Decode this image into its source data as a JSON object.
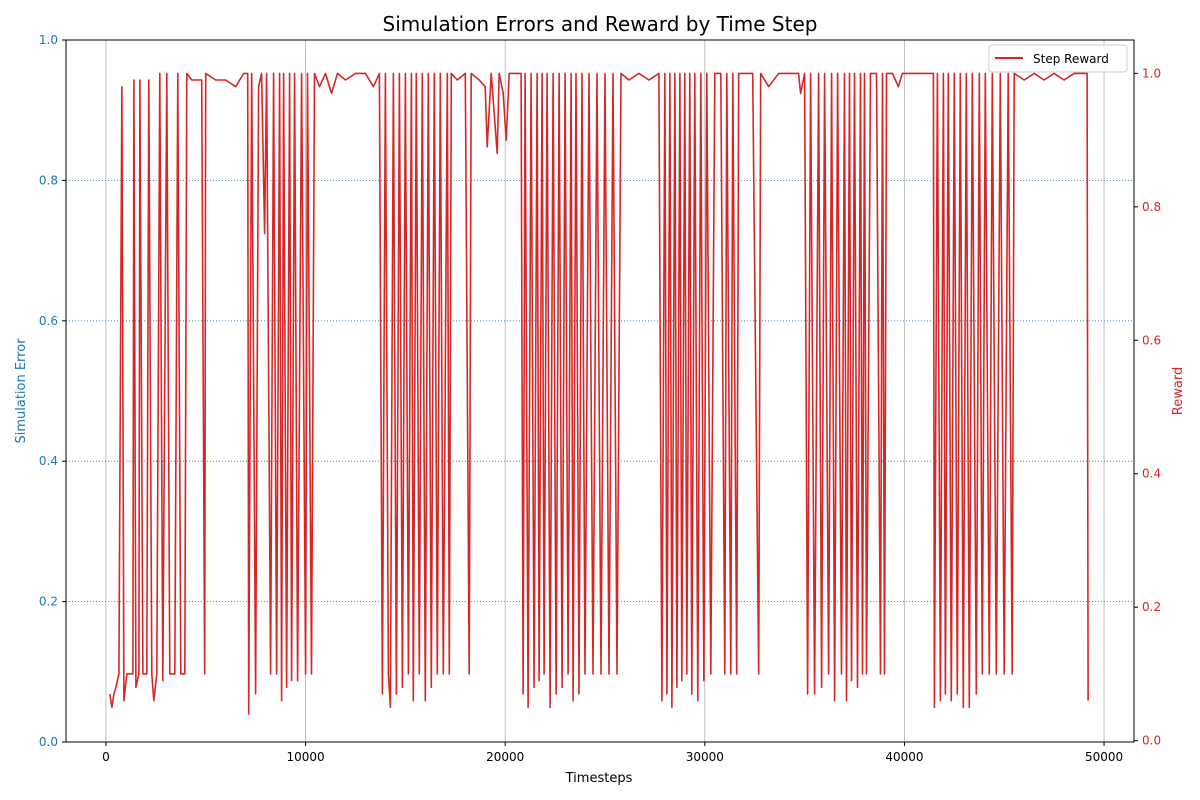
{
  "chart_data": {
    "type": "line",
    "title": "Simulation Errors and Reward by Time Step",
    "xlabel": "Timesteps",
    "ylabel_left": "Simulation Error",
    "ylabel_right": "Reward",
    "xlim": [
      -2000,
      51500
    ],
    "ylim_left": [
      0,
      1.0
    ],
    "ylim_right": [
      -0.002,
      1.05
    ],
    "x_ticks": [
      0,
      10000,
      20000,
      30000,
      40000,
      50000
    ],
    "x_tick_labels": [
      "0",
      "10000",
      "20000",
      "30000",
      "40000",
      "50000"
    ],
    "y_left_ticks": [
      0.0,
      0.2,
      0.4,
      0.6,
      0.8,
      1.0
    ],
    "y_left_tick_labels": [
      "0.0",
      "0.2",
      "0.4",
      "0.6",
      "0.8",
      "1.0"
    ],
    "y_right_ticks": [
      0.0,
      0.2,
      0.4,
      0.6,
      0.8,
      1.0
    ],
    "y_right_tick_labels": [
      "0.0",
      "0.2",
      "0.4",
      "0.6",
      "0.8",
      "1.0"
    ],
    "grid": "vertical x-gridlines solid gray; horizontal dotted lines at left-axis ticks",
    "legend_position": "top-right",
    "colors": {
      "left_axis": "#1f77b4",
      "right_axis": "#d62728",
      "reward_line": "#d62728",
      "grid": "#b0b0b0",
      "hgrid": "#1f77b4"
    },
    "series": [
      {
        "name": "Step Reward",
        "axis": "right",
        "points": [
          [
            200,
            0.07
          ],
          [
            300,
            0.05
          ],
          [
            400,
            0.07
          ],
          [
            500,
            0.08
          ],
          [
            650,
            0.1
          ],
          [
            800,
            0.98
          ],
          [
            900,
            0.06
          ],
          [
            1050,
            0.1
          ],
          [
            1200,
            0.1
          ],
          [
            1350,
            0.1
          ],
          [
            1400,
            0.99
          ],
          [
            1500,
            0.08
          ],
          [
            1650,
            0.1
          ],
          [
            1700,
            0.99
          ],
          [
            1850,
            0.1
          ],
          [
            2050,
            0.1
          ],
          [
            2150,
            0.99
          ],
          [
            2300,
            0.1
          ],
          [
            2400,
            0.06
          ],
          [
            2550,
            0.1
          ],
          [
            2700,
            1.0
          ],
          [
            2850,
            0.09
          ],
          [
            3050,
            1.0
          ],
          [
            3200,
            0.1
          ],
          [
            3450,
            0.1
          ],
          [
            3600,
            1.0
          ],
          [
            3750,
            0.1
          ],
          [
            3950,
            0.1
          ],
          [
            4050,
            1.0
          ],
          [
            4300,
            0.99
          ],
          [
            4600,
            0.99
          ],
          [
            4800,
            0.99
          ],
          [
            4950,
            0.1
          ],
          [
            5000,
            1.0
          ],
          [
            5500,
            0.99
          ],
          [
            6000,
            0.99
          ],
          [
            6500,
            0.98
          ],
          [
            6900,
            1.0
          ],
          [
            7100,
            1.0
          ],
          [
            7150,
            0.04
          ],
          [
            7300,
            1.0
          ],
          [
            7500,
            0.07
          ],
          [
            7650,
            0.98
          ],
          [
            7800,
            1.0
          ],
          [
            7950,
            0.76
          ],
          [
            8050,
            1.0
          ],
          [
            8250,
            0.1
          ],
          [
            8400,
            1.0
          ],
          [
            8550,
            0.1
          ],
          [
            8700,
            1.0
          ],
          [
            8800,
            0.06
          ],
          [
            8900,
            1.0
          ],
          [
            9050,
            0.08
          ],
          [
            9200,
            1.0
          ],
          [
            9300,
            0.09
          ],
          [
            9450,
            1.0
          ],
          [
            9600,
            0.09
          ],
          [
            9800,
            1.0
          ],
          [
            10000,
            0.1
          ],
          [
            10100,
            1.0
          ],
          [
            10300,
            0.1
          ],
          [
            10450,
            1.0
          ],
          [
            10700,
            0.98
          ],
          [
            11000,
            1.0
          ],
          [
            11300,
            0.97
          ],
          [
            11600,
            1.0
          ],
          [
            12000,
            0.99
          ],
          [
            12500,
            1.0
          ],
          [
            13000,
            1.0
          ],
          [
            13400,
            0.98
          ],
          [
            13700,
            1.0
          ],
          [
            13850,
            0.07
          ],
          [
            14000,
            1.0
          ],
          [
            14150,
            0.1
          ],
          [
            14250,
            0.05
          ],
          [
            14400,
            1.0
          ],
          [
            14550,
            0.07
          ],
          [
            14700,
            1.0
          ],
          [
            14850,
            0.08
          ],
          [
            15000,
            1.0
          ],
          [
            15150,
            0.1
          ],
          [
            15300,
            1.0
          ],
          [
            15400,
            0.06
          ],
          [
            15550,
            1.0
          ],
          [
            15700,
            0.1
          ],
          [
            15850,
            1.0
          ],
          [
            16000,
            0.06
          ],
          [
            16150,
            1.0
          ],
          [
            16300,
            0.08
          ],
          [
            16450,
            1.0
          ],
          [
            16600,
            0.1
          ],
          [
            16750,
            1.0
          ],
          [
            16900,
            0.1
          ],
          [
            17100,
            1.0
          ],
          [
            17200,
            0.1
          ],
          [
            17300,
            1.0
          ],
          [
            17600,
            0.99
          ],
          [
            18000,
            1.0
          ],
          [
            18200,
            0.1
          ],
          [
            18300,
            1.0
          ],
          [
            18700,
            0.99
          ],
          [
            19000,
            0.98
          ],
          [
            19100,
            0.89
          ],
          [
            19300,
            1.0
          ],
          [
            19600,
            0.88
          ],
          [
            19700,
            1.0
          ],
          [
            19900,
            0.97
          ],
          [
            20050,
            0.9
          ],
          [
            20200,
            1.0
          ],
          [
            20500,
            1.0
          ],
          [
            20800,
            1.0
          ],
          [
            20900,
            0.07
          ],
          [
            21000,
            1.0
          ],
          [
            21150,
            0.05
          ],
          [
            21300,
            1.0
          ],
          [
            21450,
            0.08
          ],
          [
            21600,
            1.0
          ],
          [
            21700,
            0.09
          ],
          [
            21850,
            1.0
          ],
          [
            21950,
            0.1
          ],
          [
            22100,
            1.0
          ],
          [
            22250,
            0.05
          ],
          [
            22400,
            1.0
          ],
          [
            22550,
            0.07
          ],
          [
            22700,
            1.0
          ],
          [
            22850,
            0.08
          ],
          [
            23000,
            1.0
          ],
          [
            23150,
            0.1
          ],
          [
            23300,
            1.0
          ],
          [
            23400,
            0.06
          ],
          [
            23550,
            1.0
          ],
          [
            23700,
            0.07
          ],
          [
            23850,
            1.0
          ],
          [
            24000,
            0.1
          ],
          [
            24200,
            1.0
          ],
          [
            24400,
            0.1
          ],
          [
            24600,
            1.0
          ],
          [
            24800,
            0.1
          ],
          [
            25000,
            1.0
          ],
          [
            25200,
            0.1
          ],
          [
            25400,
            1.0
          ],
          [
            25600,
            0.1
          ],
          [
            25800,
            1.0
          ],
          [
            26200,
            0.99
          ],
          [
            26700,
            1.0
          ],
          [
            27200,
            0.99
          ],
          [
            27700,
            1.0
          ],
          [
            27850,
            0.06
          ],
          [
            28000,
            1.0
          ],
          [
            28100,
            0.07
          ],
          [
            28250,
            1.0
          ],
          [
            28350,
            0.05
          ],
          [
            28500,
            1.0
          ],
          [
            28600,
            0.08
          ],
          [
            28750,
            1.0
          ],
          [
            28850,
            0.09
          ],
          [
            29000,
            1.0
          ],
          [
            29100,
            0.1
          ],
          [
            29250,
            1.0
          ],
          [
            29350,
            0.07
          ],
          [
            29500,
            1.0
          ],
          [
            29650,
            0.06
          ],
          [
            29800,
            1.0
          ],
          [
            29950,
            0.09
          ],
          [
            30100,
            1.0
          ],
          [
            30300,
            0.1
          ],
          [
            30500,
            1.0
          ],
          [
            30800,
            1.0
          ],
          [
            31000,
            0.1
          ],
          [
            31100,
            1.0
          ],
          [
            31300,
            0.1
          ],
          [
            31400,
            1.0
          ],
          [
            31600,
            0.1
          ],
          [
            31700,
            1.0
          ],
          [
            32000,
            1.0
          ],
          [
            32400,
            1.0
          ],
          [
            32700,
            0.1
          ],
          [
            32800,
            1.0
          ],
          [
            33200,
            0.98
          ],
          [
            33700,
            1.0
          ],
          [
            34200,
            1.0
          ],
          [
            34700,
            1.0
          ],
          [
            34800,
            0.97
          ],
          [
            35000,
            1.0
          ],
          [
            35150,
            0.07
          ],
          [
            35300,
            1.0
          ],
          [
            35500,
            0.07
          ],
          [
            35700,
            1.0
          ],
          [
            35850,
            0.08
          ],
          [
            36000,
            1.0
          ],
          [
            36200,
            0.1
          ],
          [
            36350,
            1.0
          ],
          [
            36500,
            0.06
          ],
          [
            36650,
            1.0
          ],
          [
            36850,
            0.1
          ],
          [
            37000,
            1.0
          ],
          [
            37100,
            0.06
          ],
          [
            37250,
            1.0
          ],
          [
            37350,
            0.09
          ],
          [
            37500,
            1.0
          ],
          [
            37650,
            0.08
          ],
          [
            37800,
            1.0
          ],
          [
            37900,
            0.1
          ],
          [
            38000,
            1.0
          ],
          [
            38100,
            0.1
          ],
          [
            38300,
            1.0
          ],
          [
            38600,
            1.0
          ],
          [
            38800,
            0.1
          ],
          [
            38900,
            1.0
          ],
          [
            39000,
            0.1
          ],
          [
            39100,
            1.0
          ],
          [
            39400,
            1.0
          ],
          [
            39700,
            0.98
          ],
          [
            39900,
            1.0
          ],
          [
            40200,
            1.0
          ],
          [
            40600,
            1.0
          ],
          [
            41000,
            1.0
          ],
          [
            41450,
            1.0
          ],
          [
            41500,
            0.05
          ],
          [
            41650,
            1.0
          ],
          [
            41800,
            0.06
          ],
          [
            41950,
            1.0
          ],
          [
            42050,
            0.07
          ],
          [
            42200,
            1.0
          ],
          [
            42350,
            0.06
          ],
          [
            42500,
            1.0
          ],
          [
            42650,
            0.07
          ],
          [
            42800,
            1.0
          ],
          [
            42950,
            0.05
          ],
          [
            43100,
            1.0
          ],
          [
            43250,
            0.05
          ],
          [
            43400,
            1.0
          ],
          [
            43600,
            0.07
          ],
          [
            43750,
            1.0
          ],
          [
            43900,
            0.1
          ],
          [
            44050,
            1.0
          ],
          [
            44250,
            0.1
          ],
          [
            44400,
            1.0
          ],
          [
            44600,
            0.1
          ],
          [
            44800,
            1.0
          ],
          [
            45000,
            0.1
          ],
          [
            45200,
            1.0
          ],
          [
            45400,
            0.1
          ],
          [
            45500,
            1.0
          ],
          [
            46000,
            0.99
          ],
          [
            46500,
            1.0
          ],
          [
            47000,
            0.99
          ],
          [
            47500,
            1.0
          ],
          [
            48000,
            0.99
          ],
          [
            48500,
            1.0
          ],
          [
            49000,
            1.0
          ],
          [
            49150,
            1.0
          ],
          [
            49200,
            0.06
          ]
        ]
      }
    ]
  }
}
